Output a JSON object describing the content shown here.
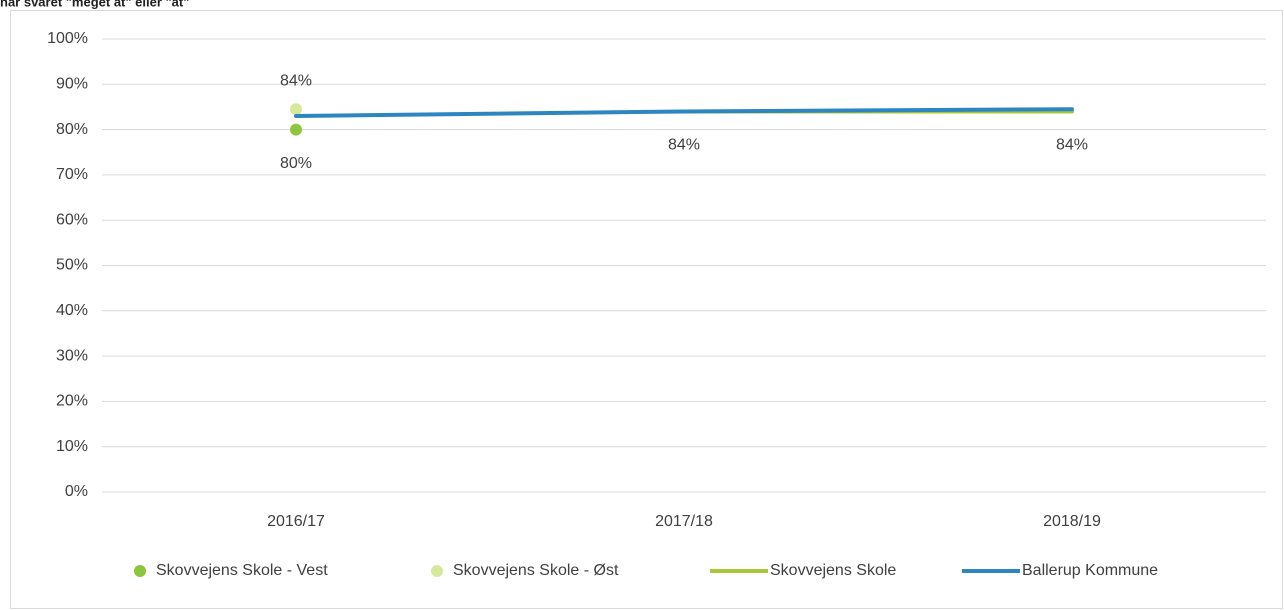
{
  "chart_data": {
    "type": "line",
    "title": "har svaret \"meget at\" eller \"at\"",
    "categories": [
      "2016/17",
      "2017/18",
      "2018/19"
    ],
    "ylim": [
      0,
      100
    ],
    "yticks": [
      {
        "value": 0,
        "label": "0%"
      },
      {
        "value": 10,
        "label": "10%"
      },
      {
        "value": 20,
        "label": "20%"
      },
      {
        "value": 30,
        "label": "30%"
      },
      {
        "value": 40,
        "label": "40%"
      },
      {
        "value": 50,
        "label": "50%"
      },
      {
        "value": 60,
        "label": "60%"
      },
      {
        "value": 70,
        "label": "70%"
      },
      {
        "value": 80,
        "label": "80%"
      },
      {
        "value": 90,
        "label": "90%"
      },
      {
        "value": 100,
        "label": "100%"
      }
    ],
    "grid": true,
    "legend": "bottom",
    "series": [
      {
        "name": "Skovvejens Skole - Vest",
        "color": "#8cc63f",
        "mode": "markers",
        "label_position": "below",
        "values": [
          80,
          null,
          null
        ],
        "value_labels": [
          "80%",
          null,
          null
        ]
      },
      {
        "name": "Skovvejens Skole - Øst",
        "color": "#d6e89c",
        "mode": "markers",
        "label_position": "above",
        "values": [
          84.5,
          null,
          null
        ],
        "value_labels": [
          "84%",
          null,
          null
        ]
      },
      {
        "name": "Skovvejens Skole",
        "color": "#a8c83a",
        "mode": "lines",
        "label_position": "below",
        "values": [
          null,
          84,
          84
        ],
        "value_labels": [
          null,
          "84%",
          "84%"
        ]
      },
      {
        "name": "Ballerup Kommune",
        "color": "#2e86c1",
        "mode": "lines",
        "values": [
          83,
          84,
          84.5
        ]
      }
    ]
  }
}
